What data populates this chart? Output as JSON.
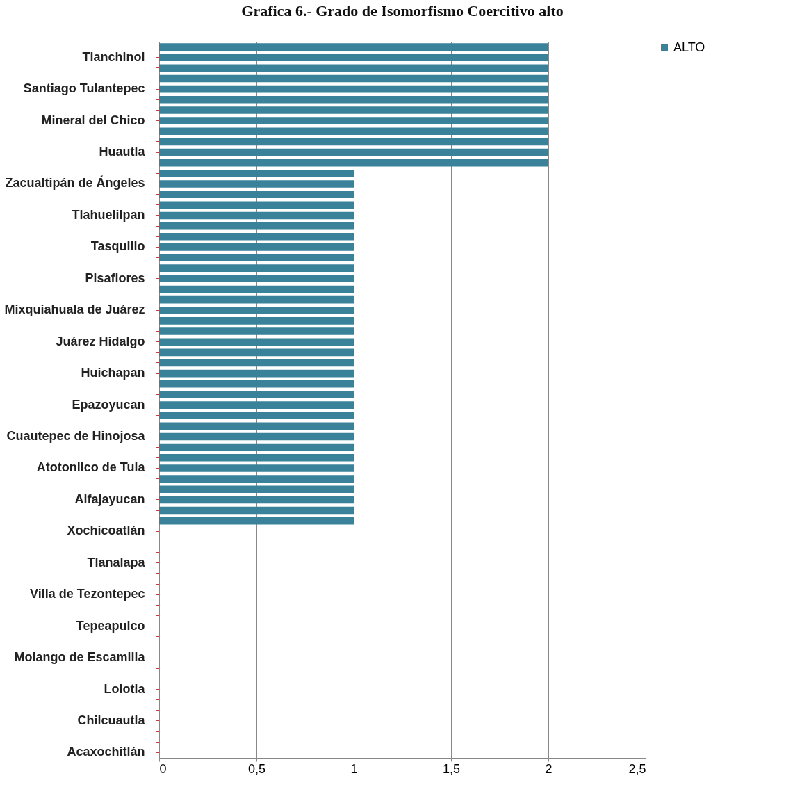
{
  "chart_data": {
    "type": "bar",
    "orientation": "horizontal",
    "title": "Grafica 6.- Grado de Isomorfismo Coercitivo alto",
    "categories": [
      null,
      "Tlanchinol",
      null,
      null,
      "Santiago Tulantepec",
      null,
      null,
      "Mineral del Chico",
      null,
      null,
      "Huautla",
      null,
      null,
      "Zacualtipán de Ángeles",
      null,
      null,
      "Tlahuelilpan",
      null,
      null,
      "Tasquillo",
      null,
      null,
      "Pisaflores",
      null,
      null,
      "Mixquiahuala de Juárez",
      null,
      null,
      "Juárez Hidalgo",
      null,
      null,
      "Huichapan",
      null,
      null,
      "Epazoyucan",
      null,
      null,
      "Cuautepec de Hinojosa",
      null,
      null,
      "Atotonilco de Tula",
      null,
      null,
      "Alfajayucan",
      null,
      null,
      "Xochicoatlán",
      null,
      null,
      "Tlanalapa",
      null,
      null,
      "Villa de Tezontepec",
      null,
      null,
      "Tepeapulco",
      null,
      null,
      "Molango de Escamilla",
      null,
      null,
      "Lolotla",
      null,
      null,
      "Chilcuautla",
      null,
      null,
      "Acaxochitlán"
    ],
    "series": [
      {
        "name": "ALTO",
        "color": "#3a8299",
        "values": [
          2,
          2,
          2,
          2,
          2,
          2,
          2,
          2,
          2,
          2,
          2,
          2,
          1,
          1,
          1,
          1,
          1,
          1,
          1,
          1,
          1,
          1,
          1,
          1,
          1,
          1,
          1,
          1,
          1,
          1,
          1,
          1,
          1,
          1,
          1,
          1,
          1,
          1,
          1,
          1,
          1,
          1,
          1,
          1,
          1,
          1,
          0,
          0,
          0,
          0,
          0,
          0,
          0,
          0,
          0,
          0,
          0,
          0,
          0,
          0,
          0,
          0,
          0,
          0,
          0,
          0,
          0,
          0
        ]
      }
    ],
    "xlim": [
      0,
      2.5
    ],
    "xticks": [
      0,
      {
        "value": 0.5,
        "label": "0,5"
      },
      1,
      {
        "value": 1.5,
        "label": "1,5"
      },
      2,
      {
        "value": 2.5,
        "label": "2,5"
      }
    ],
    "grid": "x",
    "legend": "right"
  }
}
